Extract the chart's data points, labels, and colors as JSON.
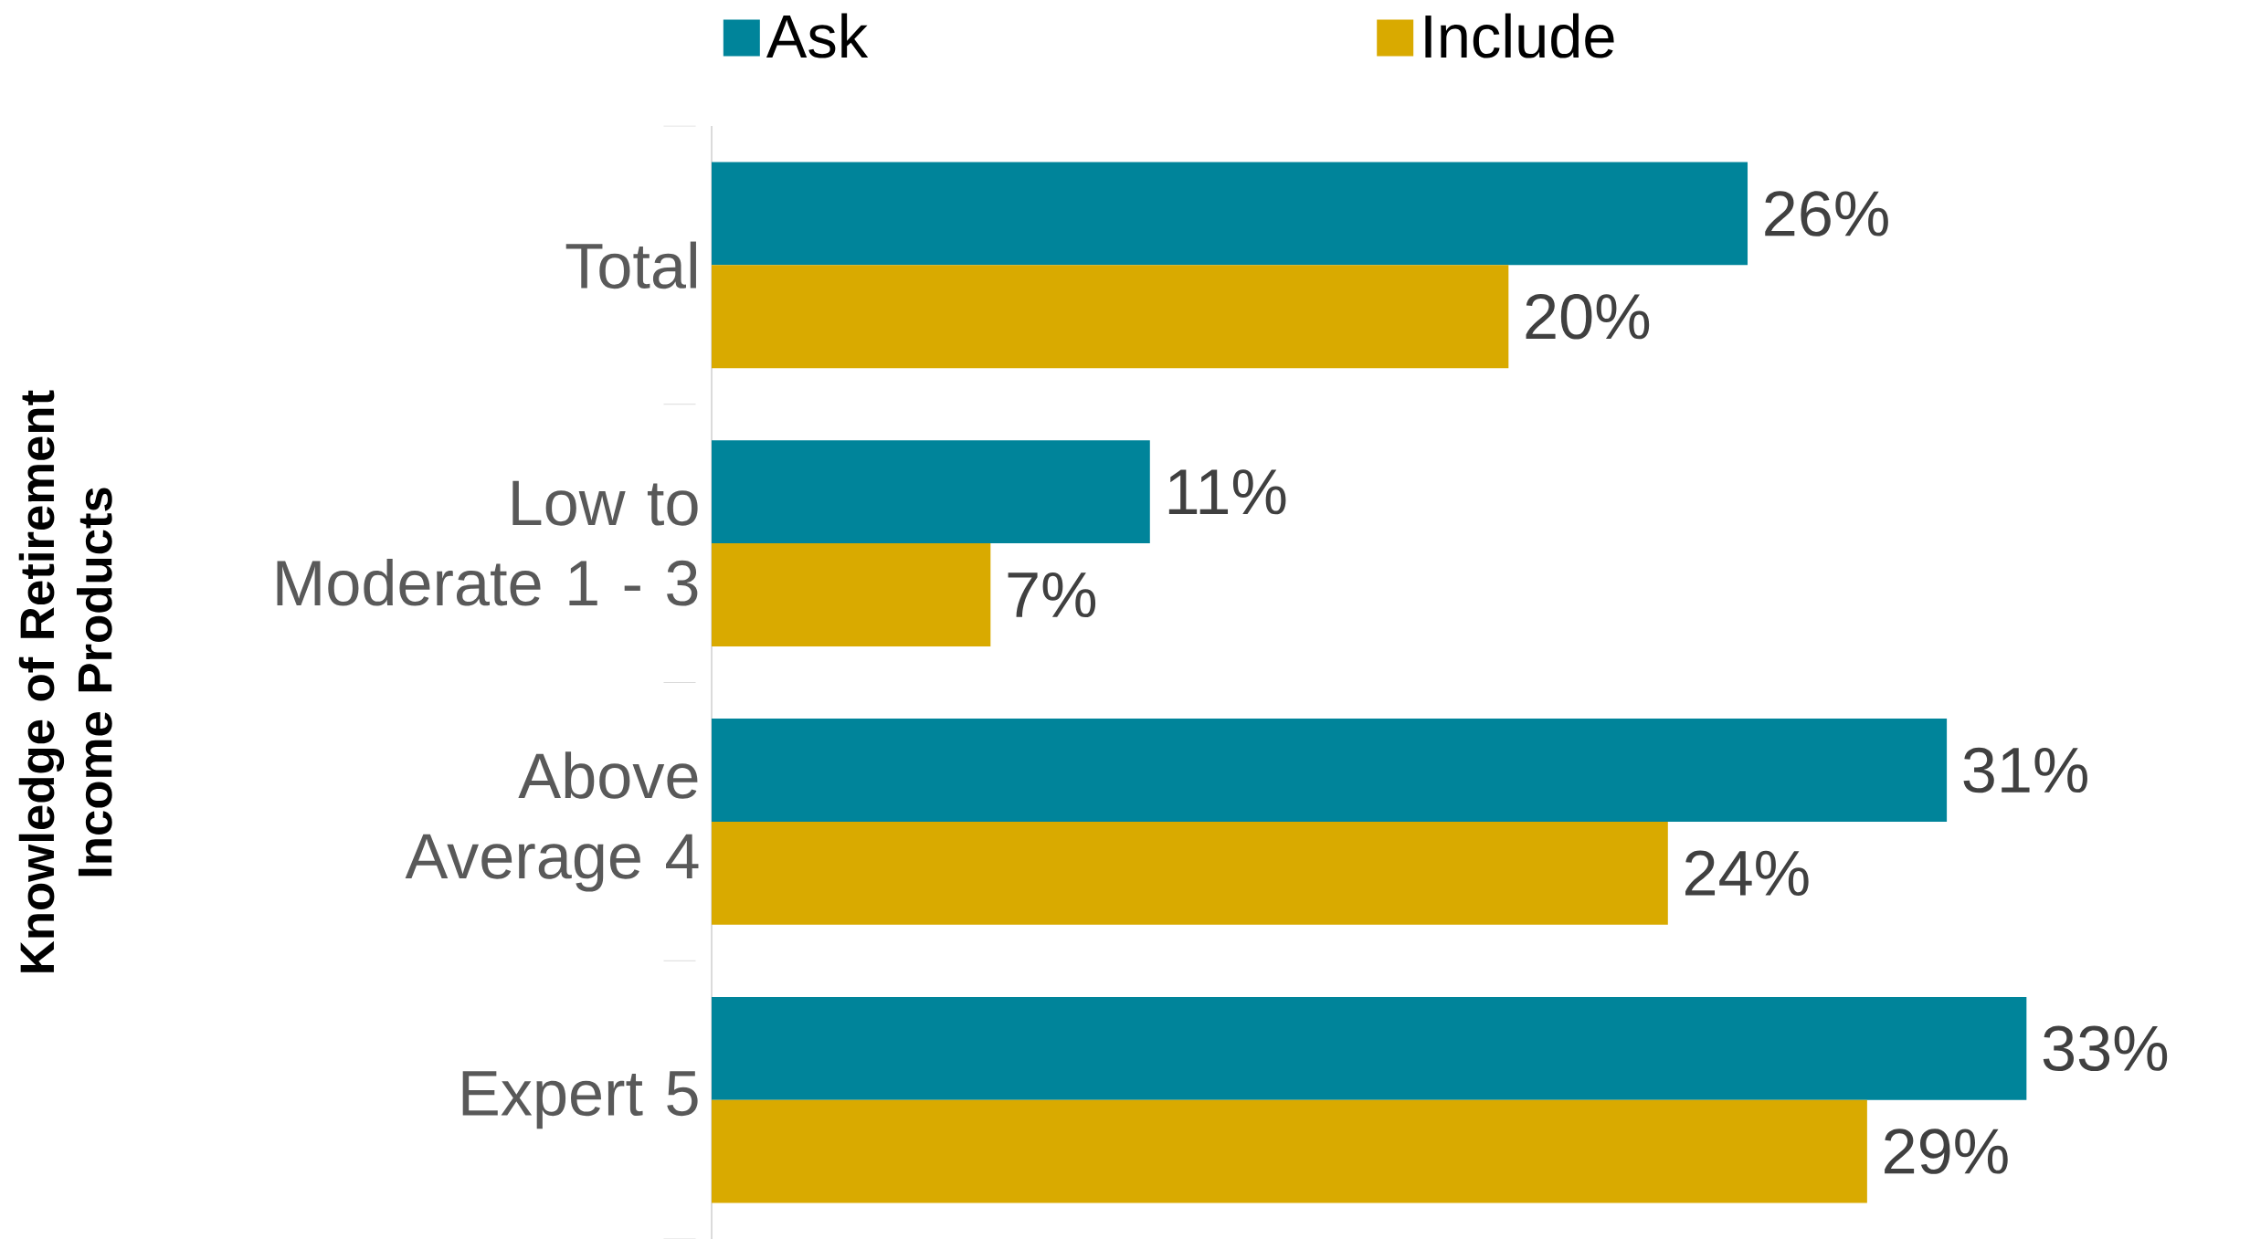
{
  "chart_data": {
    "type": "bar",
    "orientation": "horizontal",
    "ylabel": "Knowledge of Retirement Income Products",
    "categories": [
      "Total",
      "Low to Moderate 1 - 3",
      "Above Average 4",
      "Expert 5"
    ],
    "series": [
      {
        "name": "Ask",
        "color": "#00849a",
        "values": [
          26,
          11,
          31,
          33
        ],
        "value_labels": [
          "26%",
          "11%",
          "31%",
          "33%"
        ]
      },
      {
        "name": "Include",
        "color": "#d9aa00",
        "values": [
          20,
          7,
          24,
          29
        ],
        "value_labels": [
          "20%",
          "7%",
          "24%",
          "29%"
        ]
      }
    ],
    "legend": "top"
  }
}
